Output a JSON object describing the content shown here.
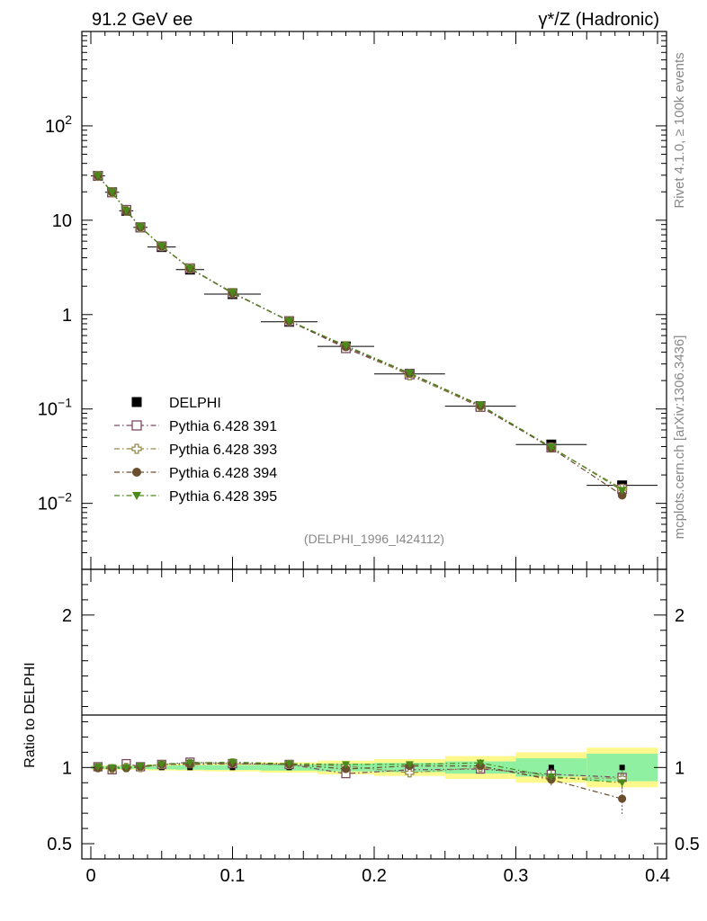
{
  "header": {
    "left": "91.2 GeV ee",
    "right": "γ*/Z (Hadronic)"
  },
  "side_labels": {
    "rivet": "Rivet 4.1.0, ≥ 100k events",
    "mcplots": "mcplots.cern.ch [arXiv:1306.3436]"
  },
  "analysis_tag": "(DELPHI_1996_I424112)",
  "colors": {
    "data": "#000000",
    "p391": "#7a4a64",
    "p393": "#958a4e",
    "p394": "#6b4e2e",
    "p395": "#4a8a1a",
    "band_inner": "#8ef0a0",
    "band_outer": "#fdf88c"
  },
  "chart_data": [
    {
      "type": "scatter",
      "panel": "main",
      "yscale": "log",
      "xlim": [
        0,
        0.4
      ],
      "ylim": [
        0.002,
        1000
      ],
      "yticks": [
        {
          "v": 0.01,
          "base": "10",
          "exp": "−2"
        },
        {
          "v": 0.1,
          "base": "10",
          "exp": "−1"
        },
        {
          "v": 1,
          "base": "1",
          "exp": ""
        },
        {
          "v": 10,
          "base": "10",
          "exp": ""
        },
        {
          "v": 100,
          "base": "10",
          "exp": "2"
        }
      ],
      "x": [
        0.005,
        0.015,
        0.025,
        0.035,
        0.05,
        0.07,
        0.1,
        0.14,
        0.18,
        0.225,
        0.275,
        0.325,
        0.375
      ],
      "xerr": [
        0.005,
        0.005,
        0.005,
        0.005,
        0.01,
        0.01,
        0.02,
        0.02,
        0.02,
        0.025,
        0.025,
        0.025,
        0.025
      ],
      "series": [
        {
          "name": "DELPHI",
          "key": "data",
          "marker": "square-filled",
          "values": [
            29.5,
            19.8,
            12.6,
            8.4,
            5.2,
            3.0,
            1.65,
            0.84,
            0.46,
            0.235,
            0.107,
            0.042,
            0.0155
          ]
        },
        {
          "name": "Pythia 6.428 391",
          "key": "p391",
          "marker": "square-open",
          "values": [
            29.6,
            19.7,
            12.9,
            8.45,
            5.3,
            3.1,
            1.69,
            0.855,
            0.44,
            0.232,
            0.105,
            0.039,
            0.0142
          ]
        },
        {
          "name": "Pythia 6.428 393",
          "key": "p393",
          "marker": "cross-open",
          "values": [
            29.6,
            19.7,
            12.6,
            8.42,
            5.3,
            3.08,
            1.7,
            0.856,
            0.465,
            0.227,
            0.107,
            0.039,
            0.0143
          ]
        },
        {
          "name": "Pythia 6.428 394",
          "key": "p394",
          "marker": "circle-filled",
          "values": [
            29.5,
            19.8,
            12.55,
            8.45,
            5.31,
            3.07,
            1.69,
            0.857,
            0.455,
            0.238,
            0.108,
            0.0385,
            0.0122
          ]
        },
        {
          "name": "Pythia 6.428 395",
          "key": "p395",
          "marker": "triangle-down-filled",
          "values": [
            29.7,
            19.9,
            12.6,
            8.5,
            5.32,
            3.09,
            1.71,
            0.86,
            0.47,
            0.24,
            0.11,
            0.0395,
            0.0137
          ]
        }
      ],
      "legend": "left-middle"
    },
    {
      "type": "scatter",
      "panel": "ratio",
      "ylabel": "Ratio to DELPHI",
      "xlim": [
        0,
        0.4
      ],
      "ylim": [
        0.4,
        2.3
      ],
      "yticks": [
        0.5,
        1,
        2
      ],
      "ytick_labels": [
        "0.5",
        "1",
        "2"
      ],
      "xticks": [
        0,
        0.1,
        0.2,
        0.3,
        0.4
      ],
      "xtick_labels": [
        "0",
        "0.1",
        "0.2",
        "0.3",
        "0.4"
      ],
      "band_edges": [
        0,
        0.01,
        0.02,
        0.03,
        0.04,
        0.06,
        0.08,
        0.12,
        0.16,
        0.2,
        0.25,
        0.3,
        0.35,
        0.4
      ],
      "band_inner": [
        0.01,
        0.01,
        0.01,
        0.01,
        0.012,
        0.014,
        0.016,
        0.02,
        0.025,
        0.03,
        0.04,
        0.06,
        0.09
      ],
      "band_outer": [
        0.015,
        0.015,
        0.015,
        0.015,
        0.02,
        0.022,
        0.026,
        0.034,
        0.045,
        0.055,
        0.075,
        0.1,
        0.13
      ],
      "series": [
        {
          "name": "Pythia 6.428 391",
          "key": "p391",
          "marker": "square-open",
          "values": [
            1.005,
            0.985,
            1.025,
            1.005,
            1.02,
            1.035,
            1.025,
            1.02,
            0.96,
            0.985,
            0.99,
            0.955,
            0.935
          ],
          "err": [
            0.005,
            0.005,
            0.005,
            0.005,
            0.005,
            0.006,
            0.006,
            0.008,
            0.012,
            0.015,
            0.025,
            0.04,
            0.05
          ]
        },
        {
          "name": "Pythia 6.428 393",
          "key": "p393",
          "marker": "cross-open",
          "values": [
            1.0,
            0.99,
            1.0,
            1.0,
            1.02,
            1.025,
            1.03,
            1.02,
            1.01,
            0.965,
            1.0,
            0.93,
            0.93
          ],
          "err": [
            0.005,
            0.005,
            0.005,
            0.005,
            0.005,
            0.006,
            0.006,
            0.008,
            0.012,
            0.015,
            0.025,
            0.04,
            0.05
          ]
        },
        {
          "name": "Pythia 6.428 394",
          "key": "p394",
          "marker": "circle-filled",
          "values": [
            0.995,
            0.995,
            0.995,
            1.005,
            1.02,
            1.02,
            1.025,
            1.02,
            0.99,
            1.01,
            1.01,
            0.92,
            0.795
          ],
          "err": [
            0.005,
            0.005,
            0.005,
            0.005,
            0.005,
            0.006,
            0.006,
            0.008,
            0.012,
            0.015,
            0.025,
            0.045,
            0.1
          ]
        },
        {
          "name": "Pythia 6.428 395",
          "key": "p395",
          "marker": "triangle-down-filled",
          "values": [
            1.005,
            1.0,
            1.0,
            1.01,
            1.02,
            1.03,
            1.035,
            1.025,
            1.02,
            1.02,
            1.03,
            0.94,
            0.9
          ],
          "err": [
            0.005,
            0.005,
            0.005,
            0.005,
            0.005,
            0.006,
            0.006,
            0.008,
            0.012,
            0.015,
            0.025,
            0.04,
            0.05
          ]
        }
      ]
    }
  ]
}
